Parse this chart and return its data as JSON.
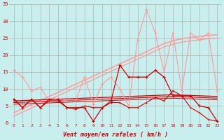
{
  "bg_color": "#c8eeee",
  "grid_color": "#b0b0b0",
  "xlabel": "Vent moyen/en rafales ( km/h )",
  "xlabel_color": "#cc0000",
  "tick_color": "#cc0000",
  "xlim": [
    -0.5,
    23.5
  ],
  "ylim": [
    0,
    35
  ],
  "yticks": [
    0,
    5,
    10,
    15,
    20,
    25,
    30,
    35
  ],
  "xticks": [
    0,
    1,
    2,
    3,
    4,
    5,
    6,
    7,
    8,
    9,
    10,
    11,
    12,
    13,
    14,
    15,
    16,
    17,
    18,
    19,
    20,
    21,
    22,
    23
  ],
  "light_red": "#ff9999",
  "dark_red": "#cc0000",
  "series_light": [
    15.5,
    13.5,
    9.5,
    10.5,
    6.5,
    7.0,
    6.5,
    6.5,
    13.5,
    5.5,
    11.5,
    13.5,
    10.0,
    5.0,
    24.5,
    33.5,
    26.5,
    15.0,
    26.5,
    9.5,
    26.5,
    24.5,
    26.5,
    9.5
  ],
  "trend_light_1": [
    3.0,
    4.2,
    5.4,
    6.6,
    7.8,
    9.0,
    10.2,
    11.4,
    12.6,
    13.8,
    15.0,
    16.2,
    17.4,
    18.6,
    19.8,
    21.0,
    22.2,
    23.4,
    24.2,
    24.8,
    25.2,
    25.5,
    25.8,
    26.0
  ],
  "trend_light_2": [
    2.0,
    3.2,
    4.4,
    5.6,
    6.8,
    8.0,
    9.2,
    10.4,
    11.6,
    12.8,
    14.0,
    15.2,
    16.4,
    17.6,
    18.8,
    20.0,
    21.2,
    22.4,
    23.2,
    23.8,
    24.2,
    24.5,
    24.8,
    25.0
  ],
  "series_dark_1": [
    7.0,
    4.5,
    7.0,
    4.5,
    7.0,
    7.0,
    4.5,
    4.5,
    4.5,
    0.5,
    4.5,
    6.5,
    17.0,
    13.5,
    13.5,
    13.5,
    15.5,
    13.5,
    8.0,
    8.0,
    8.0,
    5.0,
    4.5,
    0.5
  ],
  "series_dark_2": [
    7.0,
    4.5,
    7.0,
    4.5,
    6.5,
    6.5,
    4.5,
    4.0,
    5.0,
    4.5,
    4.5,
    6.0,
    6.0,
    4.5,
    4.5,
    6.0,
    7.5,
    6.5,
    9.5,
    8.0,
    4.5,
    3.0,
    1.0,
    0.5
  ],
  "trend_dark_1": [
    6.5,
    6.6,
    6.7,
    6.8,
    6.9,
    7.0,
    7.1,
    7.2,
    7.3,
    7.4,
    7.5,
    7.6,
    7.7,
    7.8,
    7.9,
    8.0,
    8.1,
    8.2,
    8.3,
    8.2,
    8.1,
    8.0,
    7.9,
    7.8
  ],
  "trend_dark_2": [
    6.0,
    6.1,
    6.2,
    6.3,
    6.4,
    6.5,
    6.6,
    6.7,
    6.8,
    6.9,
    7.0,
    7.1,
    7.2,
    7.3,
    7.4,
    7.5,
    7.6,
    7.7,
    7.8,
    7.7,
    7.6,
    7.5,
    7.4,
    7.3
  ],
  "trend_dark_3": [
    5.5,
    5.6,
    5.7,
    5.8,
    5.9,
    6.0,
    6.1,
    6.2,
    6.3,
    6.4,
    6.5,
    6.6,
    6.7,
    6.8,
    6.9,
    7.0,
    7.1,
    7.2,
    7.3,
    7.2,
    7.1,
    7.0,
    6.9,
    6.8
  ],
  "series_dark_3": [
    7.0,
    4.5,
    7.0,
    4.5,
    6.5,
    6.5,
    4.5,
    4.0,
    4.5,
    4.0,
    4.5,
    5.5,
    5.5,
    4.0,
    4.0,
    5.5,
    7.0,
    6.0,
    9.0,
    7.5,
    4.0,
    2.5,
    0.5,
    0.5
  ]
}
